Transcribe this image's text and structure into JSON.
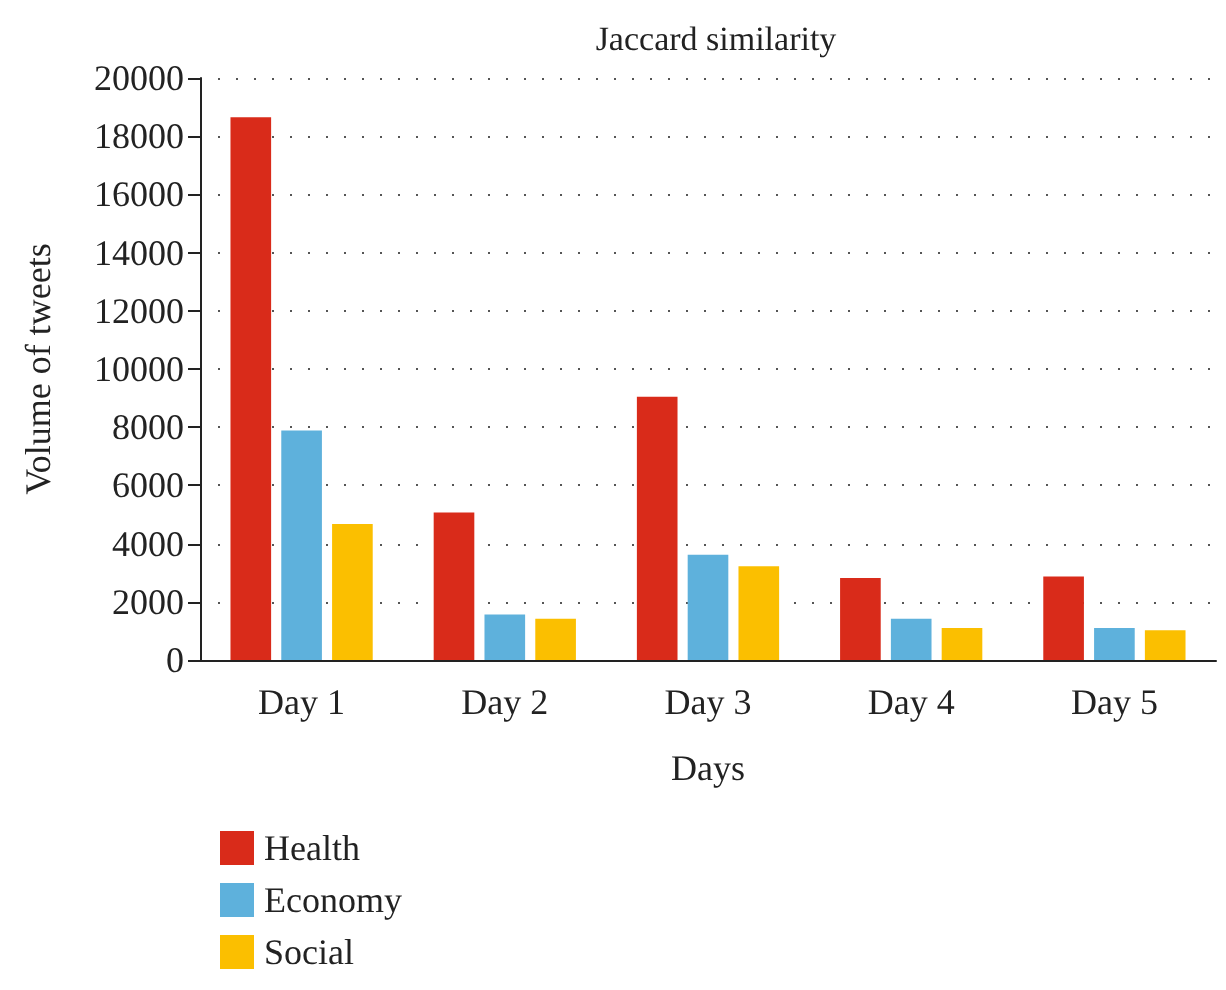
{
  "chart_data": {
    "type": "bar",
    "title": "Jaccard similarity",
    "xlabel": "Days",
    "ylabel": "Volume of tweets",
    "categories": [
      "Day 1",
      "Day 2",
      "Day 3",
      "Day 4",
      "Day 5"
    ],
    "series": [
      {
        "name": "Health",
        "color": "#d92b1a",
        "values": [
          18650,
          5070,
          9050,
          2820,
          2870
        ]
      },
      {
        "name": "Economy",
        "color": "#5eb1dc",
        "values": [
          7890,
          1560,
          3620,
          1420,
          1100
        ]
      },
      {
        "name": "Social",
        "color": "#fbbf00",
        "values": [
          4670,
          1420,
          3220,
          1100,
          1020
        ]
      }
    ],
    "ylim": [
      0,
      20000
    ],
    "yticks": [
      0,
      2000,
      4000,
      6000,
      8000,
      10000,
      12000,
      14000,
      16000,
      18000,
      20000
    ],
    "grid": "y",
    "legend": "bottom left"
  }
}
